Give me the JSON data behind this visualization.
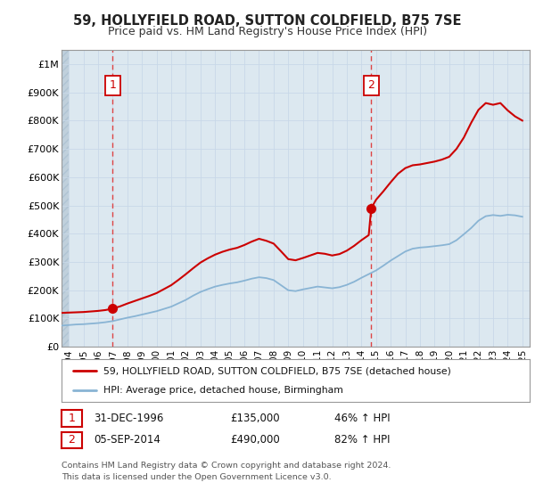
{
  "title": "59, HOLLYFIELD ROAD, SUTTON COLDFIELD, B75 7SE",
  "subtitle": "Price paid vs. HM Land Registry's House Price Index (HPI)",
  "legend_line1": "59, HOLLYFIELD ROAD, SUTTON COLDFIELD, B75 7SE (detached house)",
  "legend_line2": "HPI: Average price, detached house, Birmingham",
  "footnote1": "Contains HM Land Registry data © Crown copyright and database right 2024.",
  "footnote2": "This data is licensed under the Open Government Licence v3.0.",
  "table_row1": [
    "1",
    "31-DEC-1996",
    "£135,000",
    "46% ↑ HPI"
  ],
  "table_row2": [
    "2",
    "05-SEP-2014",
    "£490,000",
    "82% ↑ HPI"
  ],
  "sale1_x": 1997.0,
  "sale1_y": 135000,
  "sale2_x": 2014.67,
  "sale2_y": 490000,
  "red_color": "#cc0000",
  "blue_color": "#89b4d4",
  "dashed_vline_color": "#dd4444",
  "grid_color": "#c8d8e8",
  "background_color": "#ffffff",
  "plot_bg_color": "#dce8f0",
  "hatch_color": "#c0d0dc",
  "ylim": [
    0,
    1050000
  ],
  "xlim_start": 1993.5,
  "xlim_end": 2025.5,
  "data_start_x": 1994.0,
  "yticks": [
    0,
    100000,
    200000,
    300000,
    400000,
    500000,
    600000,
    700000,
    800000,
    900000,
    1000000
  ],
  "ytick_labels": [
    "£0",
    "£100K",
    "£200K",
    "£300K",
    "£400K",
    "£500K",
    "£600K",
    "£700K",
    "£800K",
    "£900K",
    "£1M"
  ],
  "xtick_years": [
    1994,
    1995,
    1996,
    1997,
    1998,
    1999,
    2000,
    2001,
    2002,
    2003,
    2004,
    2005,
    2006,
    2007,
    2008,
    2009,
    2010,
    2011,
    2012,
    2013,
    2014,
    2015,
    2016,
    2017,
    2018,
    2019,
    2020,
    2021,
    2022,
    2023,
    2024,
    2025
  ],
  "hpi_x": [
    1993.5,
    1994.0,
    1994.5,
    1995.0,
    1995.5,
    1996.0,
    1996.5,
    1997.0,
    1997.5,
    1998.0,
    1998.5,
    1999.0,
    1999.5,
    2000.0,
    2000.5,
    2001.0,
    2001.5,
    2002.0,
    2002.5,
    2003.0,
    2003.5,
    2004.0,
    2004.5,
    2005.0,
    2005.5,
    2006.0,
    2006.5,
    2007.0,
    2007.5,
    2008.0,
    2008.5,
    2009.0,
    2009.5,
    2010.0,
    2010.5,
    2011.0,
    2011.5,
    2012.0,
    2012.5,
    2013.0,
    2013.5,
    2014.0,
    2014.5,
    2015.0,
    2015.5,
    2016.0,
    2016.5,
    2017.0,
    2017.5,
    2018.0,
    2018.5,
    2019.0,
    2019.5,
    2020.0,
    2020.5,
    2021.0,
    2021.5,
    2022.0,
    2022.5,
    2023.0,
    2023.5,
    2024.0,
    2024.5,
    2025.0
  ],
  "hpi_y": [
    75000,
    77000,
    79000,
    80000,
    82000,
    84000,
    87000,
    91000,
    97000,
    103000,
    108000,
    114000,
    120000,
    126000,
    134000,
    142000,
    154000,
    166000,
    181000,
    194000,
    204000,
    213000,
    219000,
    224000,
    228000,
    234000,
    241000,
    246000,
    243000,
    236000,
    218000,
    200000,
    197000,
    203000,
    208000,
    213000,
    210000,
    207000,
    211000,
    219000,
    230000,
    244000,
    257000,
    270000,
    287000,
    305000,
    321000,
    337000,
    347000,
    351000,
    353000,
    356000,
    359000,
    363000,
    377000,
    398000,
    420000,
    446000,
    462000,
    466000,
    463000,
    467000,
    465000,
    460000
  ],
  "red_x": [
    1993.5,
    1994.0,
    1994.5,
    1995.0,
    1995.5,
    1996.0,
    1996.5,
    1997.0,
    1997.5,
    1998.0,
    1998.5,
    1999.0,
    1999.5,
    2000.0,
    2000.5,
    2001.0,
    2001.5,
    2002.0,
    2002.5,
    2003.0,
    2003.5,
    2004.0,
    2004.5,
    2005.0,
    2005.5,
    2006.0,
    2006.5,
    2007.0,
    2007.5,
    2008.0,
    2008.5,
    2009.0,
    2009.5,
    2010.0,
    2010.5,
    2011.0,
    2011.5,
    2012.0,
    2012.5,
    2013.0,
    2013.5,
    2014.0,
    2014.5,
    2014.67,
    2015.0,
    2015.5,
    2016.0,
    2016.5,
    2017.0,
    2017.5,
    2018.0,
    2018.5,
    2019.0,
    2019.5,
    2020.0,
    2020.5,
    2021.0,
    2021.5,
    2022.0,
    2022.5,
    2023.0,
    2023.5,
    2024.0,
    2024.5,
    2025.0
  ],
  "red_y": [
    120000,
    121000,
    122000,
    123000,
    125000,
    127000,
    130000,
    135000,
    143000,
    153000,
    162000,
    171000,
    180000,
    190000,
    204000,
    218000,
    237000,
    257000,
    278000,
    298000,
    313000,
    326000,
    336000,
    344000,
    350000,
    360000,
    372000,
    382000,
    375000,
    365000,
    338000,
    310000,
    306000,
    314000,
    323000,
    332000,
    329000,
    323000,
    328000,
    340000,
    357000,
    377000,
    395000,
    490000,
    520000,
    550000,
    582000,
    612000,
    632000,
    642000,
    645000,
    650000,
    655000,
    662000,
    672000,
    700000,
    740000,
    792000,
    838000,
    862000,
    856000,
    862000,
    836000,
    815000,
    800000
  ]
}
